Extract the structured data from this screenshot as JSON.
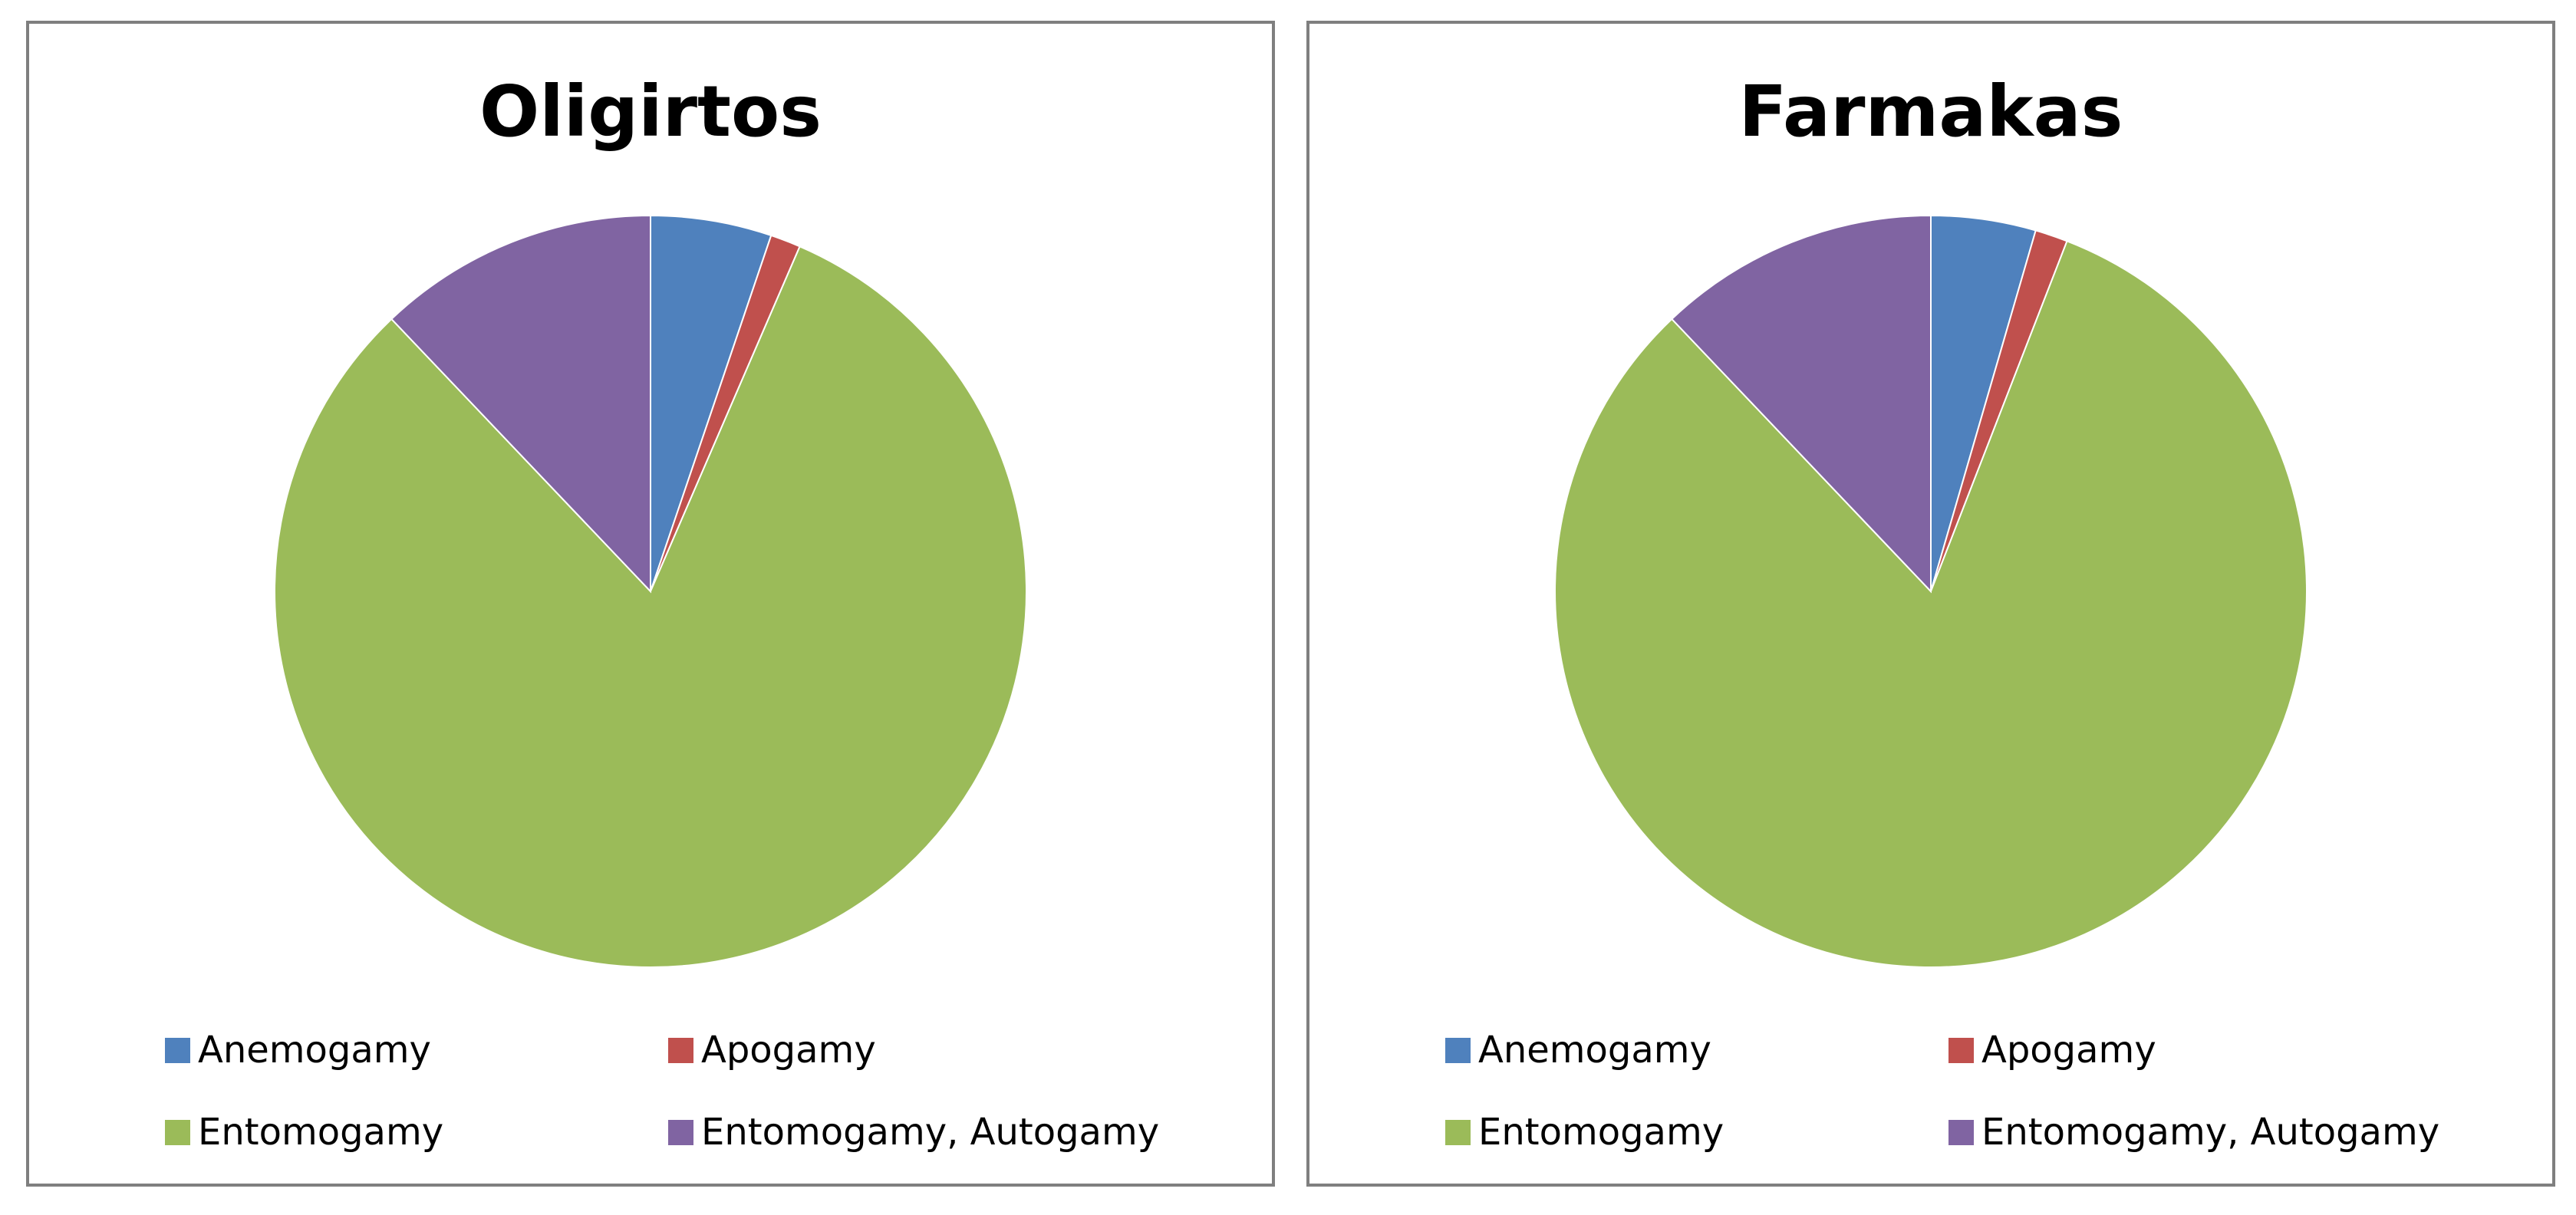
{
  "chart_data": [
    {
      "type": "pie",
      "title": "Oligirtos",
      "categories": [
        "Anemogamy",
        "Apogamy",
        "Entomogamy",
        "Entomogamy, Autogamy"
      ],
      "values": [
        5.2,
        1.3,
        81.4,
        12.1
      ],
      "colors": [
        "#4f81bd",
        "#c0504d",
        "#9bbb59",
        "#8064a2"
      ],
      "legend_position": "bottom",
      "legend": [
        "Anemogamy",
        "Apogamy",
        "Entomogamy",
        "Entomogamy, Autogamy"
      ]
    },
    {
      "type": "pie",
      "title": "Farmakas",
      "categories": [
        "Anemogamy",
        "Apogamy",
        "Entomogamy",
        "Entomogamy, Autogamy"
      ],
      "values": [
        4.5,
        1.4,
        82.0,
        12.1
      ],
      "colors": [
        "#4f81bd",
        "#c0504d",
        "#9bbb59",
        "#8064a2"
      ],
      "legend_position": "bottom",
      "legend": [
        "Anemogamy",
        "Apogamy",
        "Entomogamy",
        "Entomogamy, Autogamy"
      ]
    }
  ]
}
